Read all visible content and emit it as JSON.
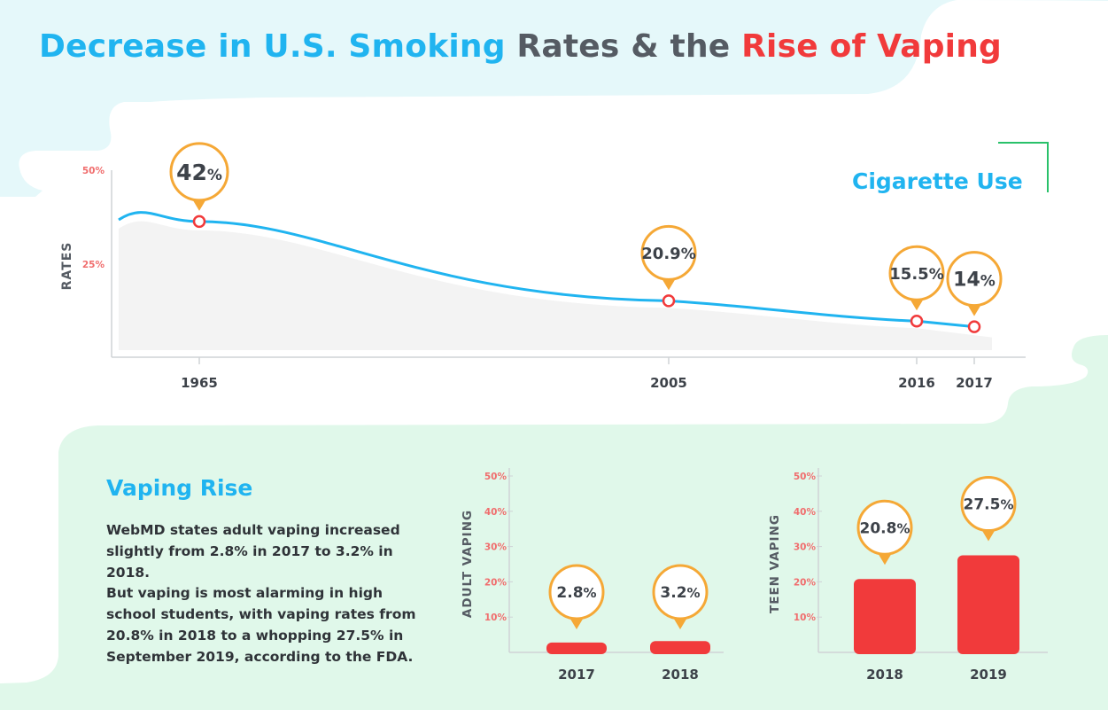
{
  "title": {
    "part1": "Decrease in U.S. Smoking",
    "part2": " Rates & the ",
    "part3": "Rise of Vaping"
  },
  "colors": {
    "blue": "#20b4f0",
    "gray": "#555b63",
    "red": "#f13a3b",
    "orange": "#f5a836",
    "light_blue_bg": "#e5f8fa",
    "light_green_bg": "#e0f8ea"
  },
  "vaping_section": {
    "title": "Vaping Rise",
    "paragraph1": "WebMD states adult vaping increased slightly from 2.8% in 2017 to 3.2% in 2018.",
    "paragraph2": "But vaping is most alarming in high school students, with vaping rates from 20.8% in 2018 to a whopping 27.5% in September 2019, according to the FDA."
  },
  "chart_data": [
    {
      "type": "line",
      "series_label": "Cigarette Use",
      "ylabel": "RATES",
      "yticks": [
        "50%",
        "25%"
      ],
      "x": [
        "1965",
        "2005",
        "2016",
        "2017"
      ],
      "values": [
        42,
        20.9,
        15.5,
        14
      ],
      "labels": [
        {
          "num": "42",
          "unit": "%"
        },
        {
          "num": "20.9",
          "unit": "%"
        },
        {
          "num": "15.5",
          "unit": "%"
        },
        {
          "num": "14",
          "unit": "%"
        }
      ]
    },
    {
      "type": "bar",
      "ylabel": "ADULT VAPING",
      "yticks": [
        "50%",
        "40%",
        "30%",
        "20%",
        "10%"
      ],
      "categories": [
        "2017",
        "2018"
      ],
      "values": [
        2.8,
        3.2
      ],
      "labels": [
        {
          "num": "2.8",
          "unit": "%"
        },
        {
          "num": "3.2",
          "unit": "%"
        }
      ],
      "ylim": [
        0,
        50
      ]
    },
    {
      "type": "bar",
      "ylabel": "TEEN VAPING",
      "yticks": [
        "50%",
        "40%",
        "30%",
        "20%",
        "10%"
      ],
      "categories": [
        "2018",
        "2019"
      ],
      "values": [
        20.8,
        27.5
      ],
      "labels": [
        {
          "num": "20.8",
          "unit": "%"
        },
        {
          "num": "27.5",
          "unit": "%"
        }
      ],
      "ylim": [
        0,
        50
      ]
    }
  ]
}
